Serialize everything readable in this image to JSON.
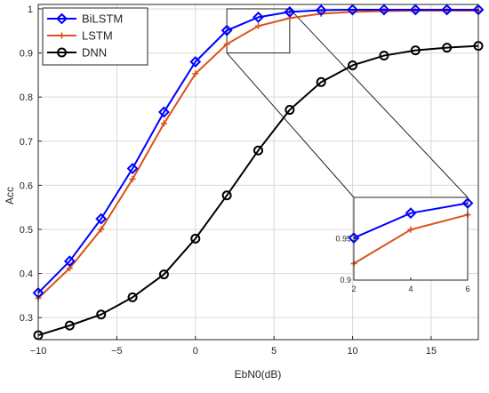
{
  "chart_data": {
    "type": "line",
    "xlabel": "EbN0(dB)",
    "ylabel": "Acc",
    "xlim": [
      -10,
      18
    ],
    "ylim": [
      0.25,
      1.01
    ],
    "xticks": [
      -10,
      -5,
      0,
      5,
      10,
      15
    ],
    "yticks": [
      0.3,
      0.4,
      0.5,
      0.6,
      0.7,
      0.8,
      0.9,
      1
    ],
    "grid": true,
    "legend_position": "top-left",
    "x": [
      -10,
      -8,
      -6,
      -4,
      -2,
      0,
      2,
      4,
      6,
      8,
      10,
      12,
      14,
      16,
      18
    ],
    "series": [
      {
        "name": "BiLSTM",
        "color": "#0000ff",
        "marker": "diamond",
        "values": [
          0.356,
          0.428,
          0.524,
          0.638,
          0.766,
          0.88,
          0.951,
          0.981,
          0.993,
          0.997,
          0.998,
          0.998,
          0.998,
          0.998,
          0.998
        ]
      },
      {
        "name": "LSTM",
        "color": "#d95319",
        "marker": "plus",
        "values": [
          0.344,
          0.412,
          0.5,
          0.614,
          0.74,
          0.853,
          0.92,
          0.961,
          0.979,
          0.989,
          0.993,
          0.995,
          0.996,
          0.996,
          0.996
        ]
      },
      {
        "name": "DNN",
        "color": "#000000",
        "marker": "circle",
        "values": [
          0.26,
          0.282,
          0.307,
          0.346,
          0.398,
          0.479,
          0.577,
          0.679,
          0.771,
          0.834,
          0.872,
          0.894,
          0.906,
          0.912,
          0.916
        ]
      }
    ],
    "inset": {
      "xlim": [
        2,
        6
      ],
      "ylim": [
        0.9,
        1.0
      ],
      "xticks": [
        2,
        4,
        6
      ],
      "yticks": [
        0.9,
        0.95
      ],
      "x": [
        2,
        4,
        6
      ],
      "series": [
        {
          "name": "BiLSTM",
          "values": [
            0.951,
            0.981,
            0.993
          ]
        },
        {
          "name": "LSTM",
          "values": [
            0.92,
            0.961,
            0.979
          ]
        }
      ]
    }
  }
}
